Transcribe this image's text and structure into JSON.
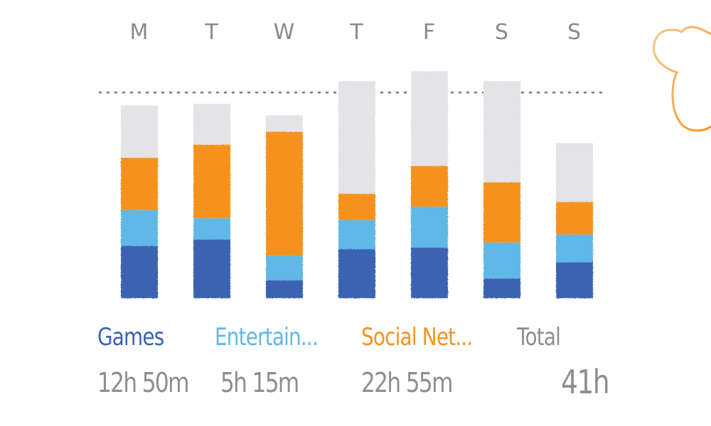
{
  "chart_data": {
    "type": "bar",
    "stacked": true,
    "categories": [
      "M",
      "T",
      "W",
      "T",
      "F",
      "S",
      "S"
    ],
    "series": [
      {
        "name": "Games",
        "values": [
          1.6,
          1.8,
          0.55,
          1.5,
          1.55,
          0.6,
          1.1
        ],
        "color": "#3a63b2"
      },
      {
        "name": "Entertain...",
        "values": [
          1.1,
          0.65,
          0.75,
          0.9,
          1.25,
          1.1,
          0.85
        ],
        "color": "#5fb8e6"
      },
      {
        "name": "Social Net...",
        "values": [
          1.6,
          2.25,
          3.8,
          0.8,
          1.25,
          1.85,
          1.0
        ],
        "color": "#f6921e"
      },
      {
        "name": "",
        "values": [
          1.6,
          1.25,
          0.5,
          3.45,
          2.9,
          3.1,
          1.8
        ],
        "color": "#e4e4e6"
      }
    ],
    "ylim": [
      0,
      7.5
    ],
    "reference_line": 6.3,
    "grid": false,
    "legend_placement": "bottom"
  },
  "legend": [
    {
      "label": "Games",
      "value": "12h 50m",
      "color": "#3a63b2"
    },
    {
      "label": "Entertain...",
      "value": "5h 15m",
      "color": "#5fb8e6"
    },
    {
      "label": "Social Net...",
      "value": "22h 55m",
      "color": "#f6921e"
    },
    {
      "label": "Total",
      "value": "41h",
      "color": "#8e8e8e"
    }
  ],
  "decoration": {
    "icon": "flower-outline-icon",
    "color": "#f6921e"
  }
}
